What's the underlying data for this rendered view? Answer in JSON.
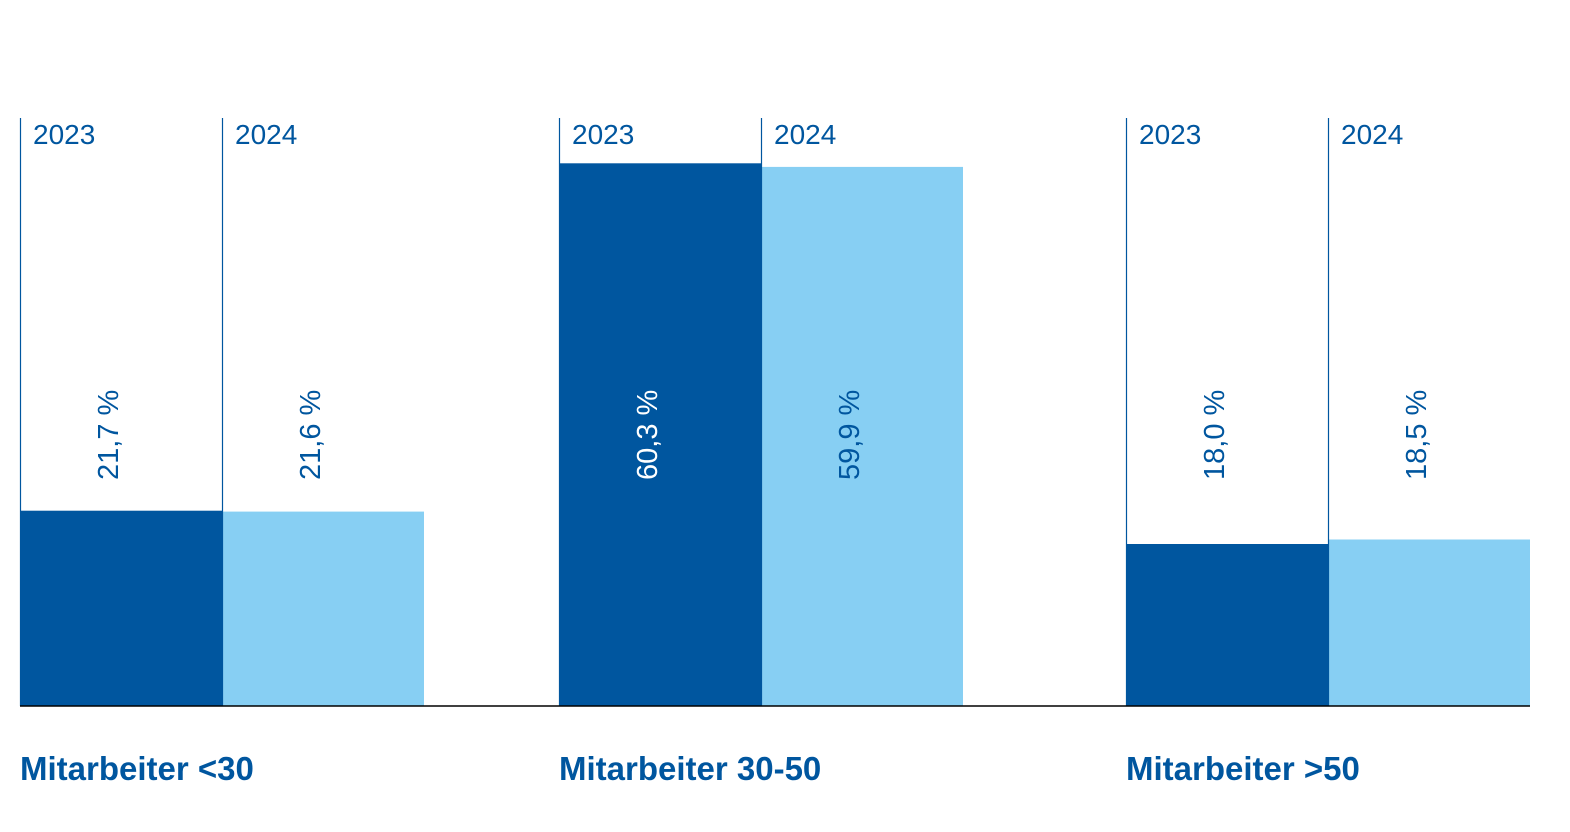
{
  "colors": {
    "series_2023": "#00569f",
    "series_2024": "#87cff3",
    "text": "#00569f",
    "axis": "#000000"
  },
  "chart_data": {
    "type": "bar",
    "categories": [
      "Mitarbeiter <30",
      "Mitarbeiter 30-50",
      "Mitarbeiter >50"
    ],
    "series": [
      {
        "name": "2023",
        "values": [
          21.7,
          60.3,
          18.0
        ],
        "labels": [
          "21,7 %",
          "60,3 %",
          "18,0 %"
        ]
      },
      {
        "name": "2024",
        "values": [
          21.6,
          59.9,
          18.5
        ],
        "labels": [
          "21,6 %",
          "59,9 %",
          "18,5 %"
        ]
      }
    ],
    "title": "",
    "xlabel": "",
    "ylabel": "",
    "ylim": [
      0,
      65
    ],
    "grid": false,
    "legend": "none"
  }
}
